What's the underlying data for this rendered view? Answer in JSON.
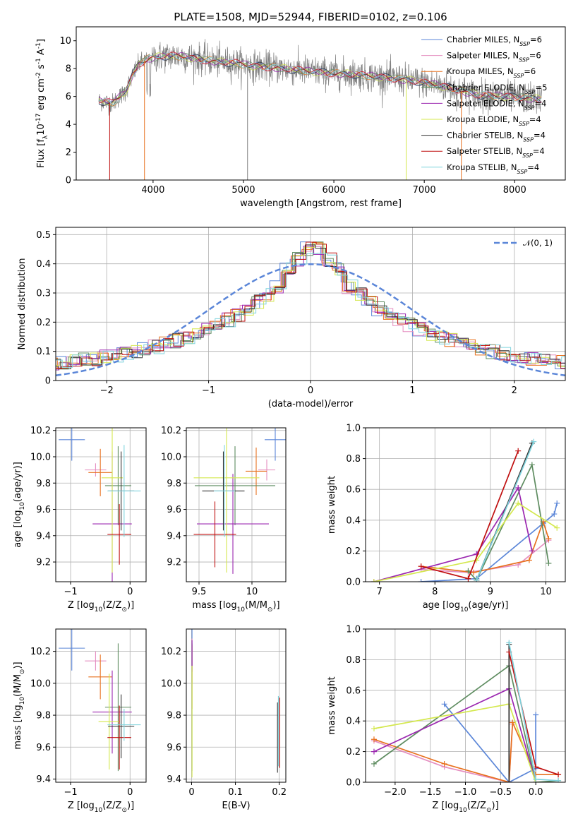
{
  "figure_title": "PLATE=1508, MJD=52944, FIBERID=0102, z=0.106",
  "chart_data": [
    {
      "id": "spectrum",
      "type": "line",
      "xlabel": "wavelength [Angstrom, rest frame]",
      "ylabel": "Flux [f$_\\lambda$10$^{-17}$ erg cm$^{-2}$ s$^{-1}$ A$^{-1}$]",
      "xlim": [
        3150,
        8560
      ],
      "ylim": [
        0,
        11
      ],
      "xticks": [
        4000,
        5000,
        6000,
        7000,
        8000
      ],
      "yticks": [
        0,
        2,
        4,
        6,
        8,
        10
      ],
      "legend_position": "top-right",
      "series": [
        {
          "name": "Chabrier MILES, N_SSP=6",
          "color": "#5b86d8"
        },
        {
          "name": "Salpeter MILES, N_SSP=6",
          "color": "#e58ec0"
        },
        {
          "name": "Kroupa MILES, N_SSP=6",
          "color": "#e8711f"
        },
        {
          "name": "Chabrier ELODIE, N_SSP=5",
          "color": "#5e8c60"
        },
        {
          "name": "Salpeter ELODIE, N_SSP=4",
          "color": "#9b27b0"
        },
        {
          "name": "Kroupa ELODIE, N_SSP=4",
          "color": "#d4e84e"
        },
        {
          "name": "Chabrier STELIB, N_SSP=4",
          "color": "#333333"
        },
        {
          "name": "Salpeter STELIB, N_SSP=4",
          "color": "#c01010"
        },
        {
          "name": "Kroupa STELIB, N_SSP=4",
          "color": "#7fd3dd"
        }
      ],
      "continuum": [
        [
          3400,
          5.7
        ],
        [
          3550,
          5.5
        ],
        [
          3700,
          6.4
        ],
        [
          3780,
          7.6
        ],
        [
          3850,
          8.4
        ],
        [
          3950,
          8.7
        ],
        [
          4100,
          8.9
        ],
        [
          4300,
          8.9
        ],
        [
          4500,
          8.7
        ],
        [
          4700,
          8.5
        ],
        [
          4900,
          8.4
        ],
        [
          5100,
          8.2
        ],
        [
          5300,
          8.1
        ],
        [
          5600,
          7.9
        ],
        [
          5900,
          7.7
        ],
        [
          6200,
          7.6
        ],
        [
          6500,
          7.4
        ],
        [
          6800,
          7.2
        ],
        [
          7000,
          7.0
        ],
        [
          7300,
          6.6
        ],
        [
          7600,
          6.1
        ],
        [
          7900,
          6.0
        ],
        [
          8300,
          5.8
        ]
      ],
      "observed_color": "#808080"
    },
    {
      "id": "residuals",
      "type": "histogram",
      "xlabel": "(data-model)/error",
      "ylabel": "Normed distribution",
      "xlim": [
        -2.5,
        2.5
      ],
      "ylim": [
        0,
        0.525
      ],
      "xticks": [
        -2,
        -1,
        0,
        1,
        2
      ],
      "yticks": [
        0.0,
        0.1,
        0.2,
        0.3,
        0.4,
        0.5
      ],
      "legend": "𝒩(0, 1)",
      "legend_position": "top-right",
      "reference_curve": "normal(0,1)",
      "bin_width": 0.1
    },
    {
      "id": "age_vs_Z",
      "type": "scatter",
      "xlabel": "Z [log$_{10}$(Z/Z$_\\odot$)]",
      "ylabel": "age  [log$_{10}$(age/yr)]",
      "xlim": [
        -1.25,
        0.27
      ],
      "ylim": [
        9.05,
        10.22
      ],
      "xticks": [
        -1,
        0
      ],
      "yticks": [
        9.2,
        9.4,
        9.6,
        9.8,
        10.0,
        10.2
      ],
      "points": [
        {
          "x": -0.98,
          "y": 10.13,
          "xerr": 0.22,
          "yerr": 0.16,
          "color": "#5b86d8"
        },
        {
          "x": -0.58,
          "y": 9.9,
          "xerr": 0.18,
          "yerr": 0.05,
          "color": "#e58ec0"
        },
        {
          "x": -0.5,
          "y": 9.88,
          "xerr": 0.2,
          "yerr": 0.18,
          "color": "#e8711f"
        },
        {
          "x": -0.2,
          "y": 9.78,
          "xerr": 0.22,
          "yerr": 0.3,
          "color": "#5e8c60"
        },
        {
          "x": -0.3,
          "y": 9.49,
          "xerr": 0.33,
          "yerr": 0.55,
          "color": "#9b27b0"
        },
        {
          "x": -0.3,
          "y": 9.84,
          "xerr": 0.18,
          "yerr": 0.72,
          "color": "#d4e84e"
        },
        {
          "x": -0.15,
          "y": 9.74,
          "xerr": 0.22,
          "yerr": 0.3,
          "color": "#333333"
        },
        {
          "x": -0.18,
          "y": 9.41,
          "xerr": 0.2,
          "yerr": 0.23,
          "color": "#c01010"
        },
        {
          "x": -0.1,
          "y": 9.74,
          "xerr": 0.28,
          "yerr": 0.35,
          "color": "#7fd3dd"
        }
      ]
    },
    {
      "id": "age_vs_mass",
      "type": "scatter",
      "xlabel": "mass [log$_{10}$(M/M$_\\odot$)]",
      "ylabel": "",
      "xlim": [
        9.38,
        10.32
      ],
      "ylim": [
        9.05,
        10.22
      ],
      "xticks": [
        9.5,
        10.0
      ],
      "yticks": [
        9.2,
        9.4,
        9.6,
        9.8,
        10.0,
        10.2
      ],
      "points": [
        {
          "x": 10.22,
          "y": 10.13,
          "xerr": 0.1,
          "yerr": 0.16,
          "color": "#5b86d8"
        },
        {
          "x": 10.14,
          "y": 9.9,
          "xerr": 0.08,
          "yerr": 0.08,
          "color": "#e58ec0"
        },
        {
          "x": 10.04,
          "y": 9.89,
          "xerr": 0.1,
          "yerr": 0.18,
          "color": "#e8711f"
        },
        {
          "x": 9.84,
          "y": 9.78,
          "xerr": 0.38,
          "yerr": 0.3,
          "color": "#5e8c60"
        },
        {
          "x": 9.82,
          "y": 9.49,
          "xerr": 0.34,
          "yerr": 0.38,
          "color": "#9b27b0"
        },
        {
          "x": 9.76,
          "y": 9.84,
          "xerr": 0.31,
          "yerr": 0.72,
          "color": "#d4e84e"
        },
        {
          "x": 9.73,
          "y": 9.74,
          "xerr": 0.2,
          "yerr": 0.3,
          "color": "#333333"
        },
        {
          "x": 9.65,
          "y": 9.41,
          "xerr": 0.2,
          "yerr": 0.25,
          "color": "#c01010"
        },
        {
          "x": 9.74,
          "y": 9.74,
          "xerr": 0.1,
          "yerr": 0.35,
          "color": "#7fd3dd"
        }
      ]
    },
    {
      "id": "massweight_vs_age",
      "type": "line",
      "xlabel": "age  [log$_{10}$(age/yr)]",
      "ylabel": "mass weight",
      "xlim": [
        6.75,
        10.35
      ],
      "ylim": [
        0,
        1.0
      ],
      "xticks": [
        7,
        8,
        9,
        10
      ],
      "yticks": [
        0.0,
        0.2,
        0.4,
        0.6,
        0.8,
        1.0
      ],
      "series": [
        {
          "color": "#5b86d8",
          "points": [
            [
              7.75,
              0.0
            ],
            [
              8.75,
              0.02
            ],
            [
              9.95,
              0.38
            ],
            [
              10.15,
              0.44
            ],
            [
              10.2,
              0.51
            ]
          ]
        },
        {
          "color": "#e58ec0",
          "points": [
            [
              7.75,
              0.08
            ],
            [
              8.6,
              0.06
            ],
            [
              9.5,
              0.11
            ],
            [
              10.05,
              0.27
            ]
          ]
        },
        {
          "color": "#e8711f",
          "points": [
            [
              7.75,
              0.1
            ],
            [
              8.7,
              0.06
            ],
            [
              9.7,
              0.14
            ],
            [
              9.95,
              0.39
            ],
            [
              10.05,
              0.28
            ]
          ]
        },
        {
          "color": "#5e8c60",
          "points": [
            [
              8.6,
              0.07
            ],
            [
              8.75,
              0.01
            ],
            [
              9.75,
              0.76
            ],
            [
              10.05,
              0.12
            ]
          ]
        },
        {
          "color": "#9b27b0",
          "points": [
            [
              6.9,
              0.0
            ],
            [
              8.75,
              0.18
            ],
            [
              9.5,
              0.61
            ],
            [
              9.75,
              0.2
            ]
          ]
        },
        {
          "color": "#d4e84e",
          "points": [
            [
              6.9,
              0.0
            ],
            [
              8.75,
              0.14
            ],
            [
              9.5,
              0.51
            ],
            [
              10.2,
              0.35
            ]
          ]
        },
        {
          "color": "#333333",
          "points": [
            [
              8.75,
              0.01
            ],
            [
              9.75,
              0.9
            ]
          ]
        },
        {
          "color": "#c01010",
          "points": [
            [
              7.75,
              0.1
            ],
            [
              8.6,
              0.02
            ],
            [
              9.5,
              0.85
            ]
          ]
        },
        {
          "color": "#7fd3dd",
          "points": [
            [
              8.75,
              0.01
            ],
            [
              9.78,
              0.91
            ]
          ]
        }
      ]
    },
    {
      "id": "mass_vs_Z",
      "type": "scatter",
      "xlabel": "Z [log$_{10}$(Z/Z$_\\odot$)]",
      "ylabel": "mass [log$_{10}$(M/M$_\\odot$)]",
      "xlim": [
        -1.25,
        0.27
      ],
      "ylim": [
        9.38,
        10.34
      ],
      "xticks": [
        -1,
        0
      ],
      "yticks": [
        9.4,
        9.6,
        9.8,
        10.0,
        10.2
      ],
      "points": [
        {
          "x": -0.98,
          "y": 10.22,
          "xerr": 0.22,
          "yerr": 0.14,
          "color": "#5b86d8"
        },
        {
          "x": -0.58,
          "y": 10.14,
          "xerr": 0.18,
          "yerr": 0.06,
          "color": "#e58ec0"
        },
        {
          "x": -0.5,
          "y": 10.04,
          "xerr": 0.2,
          "yerr": 0.14,
          "color": "#e8711f"
        },
        {
          "x": -0.2,
          "y": 9.85,
          "xerr": 0.22,
          "yerr": 0.4,
          "color": "#5e8c60"
        },
        {
          "x": -0.3,
          "y": 9.82,
          "xerr": 0.33,
          "yerr": 0.26,
          "color": "#9b27b0"
        },
        {
          "x": -0.35,
          "y": 9.76,
          "xerr": 0.18,
          "yerr": 0.3,
          "color": "#d4e84e"
        },
        {
          "x": -0.15,
          "y": 9.73,
          "xerr": 0.22,
          "yerr": 0.2,
          "color": "#333333"
        },
        {
          "x": -0.18,
          "y": 9.66,
          "xerr": 0.2,
          "yerr": 0.2,
          "color": "#c01010"
        },
        {
          "x": -0.1,
          "y": 9.74,
          "xerr": 0.28,
          "yerr": 0.1,
          "color": "#7fd3dd"
        }
      ]
    },
    {
      "id": "mass_vs_ebv",
      "type": "scatter",
      "xlabel": "E(B-V)",
      "ylabel": "",
      "xlim": [
        -0.012,
        0.215
      ],
      "ylim": [
        9.38,
        10.34
      ],
      "xticks": [
        0.0,
        0.1,
        0.2
      ],
      "yticks": [
        9.4,
        9.6,
        9.8,
        10.0,
        10.2
      ],
      "points": [
        {
          "x": 0.001,
          "y": 10.22,
          "xerr": 0,
          "yerr": 0.14,
          "color": "#5b86d8"
        },
        {
          "x": 0.001,
          "y": 10.14,
          "xerr": 0,
          "yerr": 0.14,
          "color": "#e58ec0"
        },
        {
          "x": 0.001,
          "y": 10.04,
          "xerr": 0,
          "yerr": 0.2,
          "color": "#e8711f"
        },
        {
          "x": 0.001,
          "y": 9.85,
          "xerr": 0,
          "yerr": 0.4,
          "color": "#5e8c60"
        },
        {
          "x": 0.001,
          "y": 10.17,
          "xerr": 0,
          "yerr": 0.1,
          "color": "#9b27b0"
        },
        {
          "x": 0.001,
          "y": 9.76,
          "xerr": 0,
          "yerr": 0.35,
          "color": "#d4e84e"
        },
        {
          "x": 0.196,
          "y": 9.66,
          "xerr": 0,
          "yerr": 0.22,
          "color": "#333333"
        },
        {
          "x": 0.201,
          "y": 9.69,
          "xerr": 0,
          "yerr": 0.22,
          "color": "#c01010"
        },
        {
          "x": 0.198,
          "y": 9.7,
          "xerr": 0,
          "yerr": 0.22,
          "color": "#7fd3dd"
        }
      ]
    },
    {
      "id": "massweight_vs_Z",
      "type": "line",
      "xlabel": "Z [log$_{10}$(Z/Z$_\\odot$)]",
      "ylabel": "mass weight",
      "xlim": [
        -2.42,
        0.42
      ],
      "ylim": [
        0,
        1.0
      ],
      "xticks": [
        -2.0,
        -1.5,
        -1.0,
        -0.5,
        0.0
      ],
      "yticks": [
        0.0,
        0.2,
        0.4,
        0.6,
        0.8,
        1.0
      ],
      "series": [
        {
          "color": "#5b86d8",
          "points": [
            [
              -1.3,
              0.51
            ],
            [
              -0.38,
              0.0
            ],
            [
              0.0,
              0.09
            ],
            [
              0.0,
              0.44
            ]
          ]
        },
        {
          "color": "#e58ec0",
          "points": [
            [
              -2.3,
              0.27
            ],
            [
              -1.3,
              0.1
            ],
            [
              -0.38,
              0.0
            ],
            [
              -0.33,
              0.38
            ]
          ]
        },
        {
          "color": "#e8711f",
          "points": [
            [
              -2.3,
              0.28
            ],
            [
              -1.3,
              0.12
            ],
            [
              -0.38,
              0.0
            ],
            [
              -0.33,
              0.39
            ],
            [
              0.0,
              0.05
            ],
            [
              0.32,
              0.05
            ]
          ]
        },
        {
          "color": "#5e8c60",
          "points": [
            [
              -2.3,
              0.12
            ],
            [
              -0.38,
              0.76
            ],
            [
              0.0,
              0.0
            ],
            [
              0.32,
              0.01
            ]
          ]
        },
        {
          "color": "#9b27b0",
          "points": [
            [
              -2.3,
              0.2
            ],
            [
              -0.38,
              0.61
            ],
            [
              0.0,
              0.0
            ]
          ]
        },
        {
          "color": "#d4e84e",
          "points": [
            [
              -2.3,
              0.35
            ],
            [
              -0.38,
              0.51
            ],
            [
              0.0,
              0.0
            ]
          ]
        },
        {
          "color": "#333333",
          "points": [
            [
              -0.38,
              0.9
            ],
            [
              -0.38,
              0.0
            ]
          ]
        },
        {
          "color": "#c01010",
          "points": [
            [
              -0.38,
              0.85
            ],
            [
              0.0,
              0.1
            ],
            [
              0.32,
              0.05
            ]
          ]
        },
        {
          "color": "#7fd3dd",
          "points": [
            [
              -0.38,
              0.91
            ],
            [
              0.0,
              0.02
            ],
            [
              0.32,
              0.01
            ]
          ]
        }
      ]
    }
  ]
}
